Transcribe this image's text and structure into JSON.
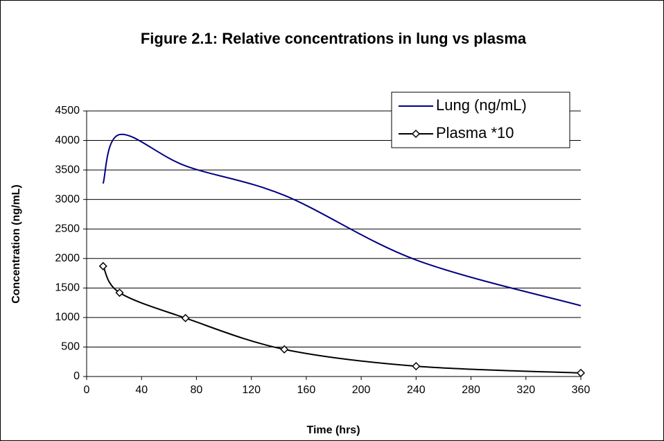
{
  "chart_data": {
    "type": "line",
    "title": "Figure 2.1: Relative concentrations in lung vs plasma",
    "x_label": "Time (hrs)",
    "y_label": "Concentration (ng/mL)",
    "x": [
      12,
      24,
      72,
      144,
      240,
      360
    ],
    "series": [
      {
        "name": "Lung (ng/mL)",
        "color": "#000080",
        "values": [
          3270,
          4100,
          3570,
          3070,
          1975,
          1200
        ],
        "marker": "none"
      },
      {
        "name": "Plasma *10",
        "color": "#000000",
        "values": [
          1870,
          1420,
          990,
          460,
          175,
          60
        ],
        "marker": "diamond"
      }
    ],
    "xlim": [
      0,
      360
    ],
    "xticks": [
      0,
      40,
      80,
      120,
      160,
      200,
      240,
      280,
      320,
      360
    ],
    "ylim": [
      0,
      4500
    ],
    "yticks": [
      0,
      500,
      1000,
      1500,
      2000,
      2500,
      3000,
      3500,
      4000,
      4500
    ],
    "grid": true,
    "smooth": true,
    "legend": "top-right"
  }
}
